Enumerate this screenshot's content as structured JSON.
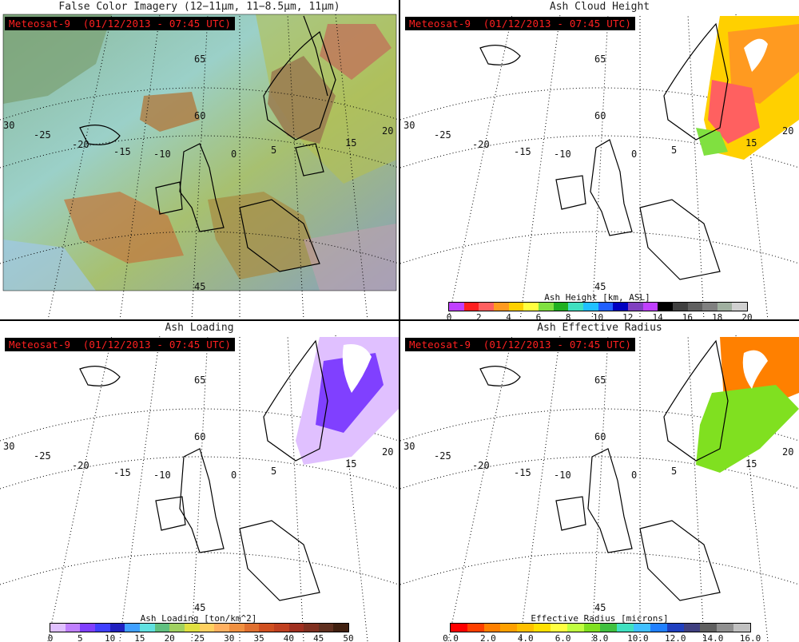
{
  "panels": [
    {
      "title": "False Color Imagery (12−11μm, 11−8.5μm, 11μm)",
      "tag": "Meteosat-9  (01/12/2013 - 07:45 UTC)"
    },
    {
      "title": "Ash Cloud Height",
      "tag": "Meteosat-9  (01/12/2013 - 07:45 UTC)"
    },
    {
      "title": "Ash Loading",
      "tag": "Meteosat-9  (01/12/2013 - 07:45 UTC)"
    },
    {
      "title": "Ash Effective Radius",
      "tag": "Meteosat-9  (01/12/2013 - 07:45 UTC)"
    }
  ],
  "grid_labels": {
    "lat": [
      "65",
      "60",
      "45"
    ],
    "lon": [
      "30",
      "-25",
      "-20",
      "-15",
      "-10",
      "0",
      "5",
      "20",
      "15"
    ]
  },
  "colorbars": {
    "height": {
      "label": "Ash Height [km, ASL]",
      "ticks": [
        "0",
        "2",
        "4",
        "6",
        "8",
        "10",
        "12",
        "14",
        "16",
        "18",
        "20"
      ],
      "colors": [
        "#c040ff",
        "#ff2020",
        "#ff6060",
        "#ff9a20",
        "#ffd000",
        "#ffff40",
        "#80e040",
        "#20b020",
        "#40e0c0",
        "#20c0ff",
        "#2060ff",
        "#0000c0",
        "#8040c0",
        "#c040ff",
        "#000000",
        "#404040",
        "#606060",
        "#808080",
        "#a0b0a0",
        "#d0d0d0"
      ]
    },
    "loading": {
      "label": "Ash Loading [ton/km^2]",
      "ticks": [
        "0",
        "5",
        "10",
        "15",
        "20",
        "25",
        "30",
        "35",
        "40",
        "45",
        "50"
      ],
      "colors": [
        "#e0c0ff",
        "#c080ff",
        "#8040ff",
        "#4040ff",
        "#2020c0",
        "#40a0ff",
        "#60e0e0",
        "#60c080",
        "#a0d060",
        "#e0e040",
        "#ffd060",
        "#ffb060",
        "#f09040",
        "#e07030",
        "#d05020",
        "#c04020",
        "#a03020",
        "#803020",
        "#603020",
        "#402010"
      ]
    },
    "radius": {
      "label": "Effective Radius [microns]",
      "ticks": [
        "0.0",
        "2.0",
        "4.0",
        "6.0",
        "8.0",
        "10.0",
        "12.0",
        "14.0",
        "16.0"
      ],
      "colors": [
        "#ff0000",
        "#ff4000",
        "#ff8000",
        "#ffa000",
        "#ffc000",
        "#ffe000",
        "#ffff40",
        "#c0ff40",
        "#80e020",
        "#40c040",
        "#40e0c0",
        "#40c0ff",
        "#2080ff",
        "#2040c0",
        "#404080",
        "#606060",
        "#909090",
        "#c0c0c0"
      ]
    }
  }
}
